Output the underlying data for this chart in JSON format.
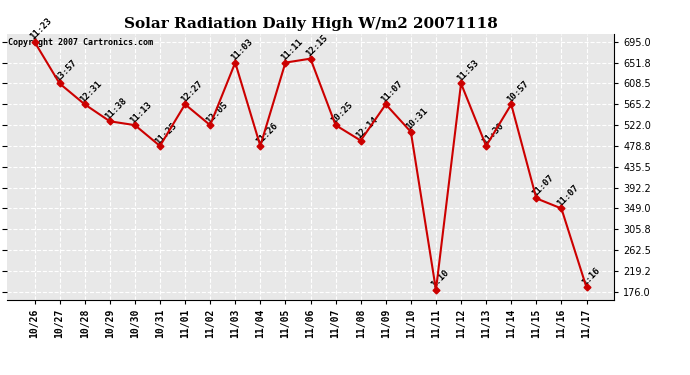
{
  "title": "Solar Radiation Daily High W/m2 20071118",
  "copyright": "Copyright 2007 Cartronics.com",
  "dates": [
    "10/26",
    "10/27",
    "10/28",
    "10/29",
    "10/30",
    "10/31",
    "11/01",
    "11/02",
    "11/03",
    "11/04",
    "11/05",
    "11/06",
    "11/07",
    "11/08",
    "11/09",
    "11/10",
    "11/11",
    "11/12",
    "11/13",
    "11/14",
    "11/15",
    "11/16",
    "11/17"
  ],
  "values": [
    695,
    608.5,
    565.2,
    530,
    522,
    478.8,
    565.2,
    522,
    651.8,
    478.8,
    651.8,
    660,
    522,
    490,
    565.2,
    508,
    180,
    608.5,
    478.8,
    565.2,
    370,
    349,
    185
  ],
  "times": [
    "11:23",
    "13:57",
    "12:31",
    "11:38",
    "11:13",
    "11:25",
    "12:27",
    "12:05",
    "11:03",
    "11:26",
    "11:11",
    "12:15",
    "10:25",
    "12:14",
    "11:07",
    "10:31",
    "1:10",
    "11:53",
    "11:30",
    "10:57",
    "11:07",
    "11:07",
    "1:16"
  ],
  "ylim_min": 159.0,
  "ylim_max": 711.7,
  "yticks": [
    176.0,
    219.2,
    262.5,
    305.8,
    349.0,
    392.2,
    435.5,
    478.8,
    522.0,
    565.2,
    608.5,
    651.8,
    695.0
  ],
  "line_color": "#cc0000",
  "marker_color": "#cc0000",
  "bg_color": "#ffffff",
  "plot_bg_color": "#e8e8e8",
  "grid_color": "#ffffff",
  "title_fontsize": 11,
  "tick_fontsize": 7,
  "annot_fontsize": 6.5
}
